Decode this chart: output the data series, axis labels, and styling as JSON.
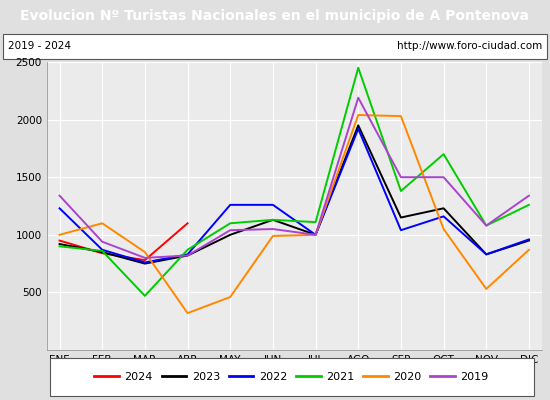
{
  "title": "Evolucion Nº Turistas Nacionales en el municipio de A Pontenova",
  "subtitle_left": "2019 - 2024",
  "subtitle_right": "http://www.foro-ciudad.com",
  "months": [
    "ENE",
    "FEB",
    "MAR",
    "ABR",
    "MAY",
    "JUN",
    "JUL",
    "AGO",
    "SEP",
    "OCT",
    "NOV",
    "DIC"
  ],
  "series": {
    "2024": {
      "color": "#ff0000",
      "values": [
        950,
        840,
        780,
        1100,
        null,
        null,
        null,
        null,
        null,
        null,
        null,
        null
      ]
    },
    "2023": {
      "color": "#000000",
      "values": [
        920,
        850,
        750,
        820,
        1000,
        1130,
        1000,
        1950,
        1150,
        1230,
        830,
        950
      ]
    },
    "2022": {
      "color": "#0000ff",
      "values": [
        1230,
        870,
        760,
        830,
        1260,
        1260,
        1000,
        1920,
        1040,
        1160,
        830,
        960
      ]
    },
    "2021": {
      "color": "#00cc00",
      "values": [
        900,
        860,
        470,
        870,
        1100,
        1130,
        1110,
        2450,
        1380,
        1700,
        1080,
        1260
      ]
    },
    "2020": {
      "color": "#ff8800",
      "values": [
        1000,
        1100,
        850,
        320,
        460,
        990,
        1000,
        2040,
        2030,
        1050,
        530,
        870
      ]
    },
    "2019": {
      "color": "#aa44cc",
      "values": [
        1340,
        940,
        800,
        820,
        1040,
        1050,
        1000,
        2190,
        1500,
        1500,
        1080,
        1340
      ]
    }
  },
  "ylim": [
    0,
    2500
  ],
  "yticks": [
    0,
    500,
    1000,
    1500,
    2000,
    2500
  ],
  "bg_color": "#e0e0e0",
  "plot_bg_color": "#ebebeb",
  "title_bg_color": "#4472c4",
  "title_color": "#ffffff",
  "grid_color": "#ffffff",
  "legend_order": [
    "2024",
    "2023",
    "2022",
    "2021",
    "2020",
    "2019"
  ],
  "title_fontsize": 10,
  "tick_fontsize": 7.5,
  "legend_fontsize": 8
}
